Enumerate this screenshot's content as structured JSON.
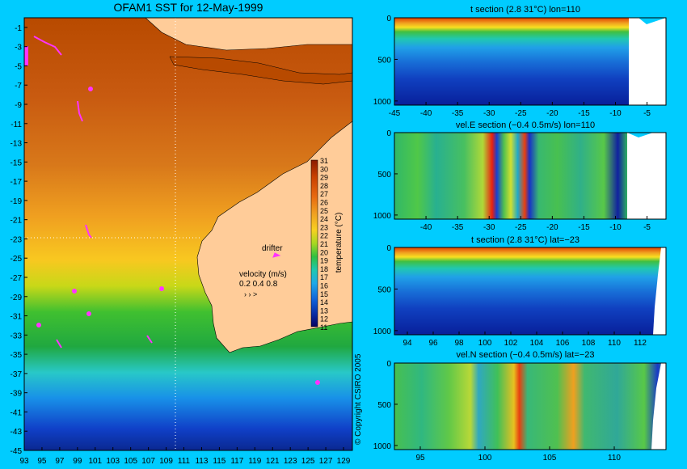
{
  "map": {
    "title": "OFAM1 SST for 12-May-1999",
    "lat_ticks": [
      "-1",
      "-3",
      "-5",
      "-7",
      "-9",
      "-11",
      "-13",
      "-15",
      "-17",
      "-19",
      "-21",
      "-23",
      "-25",
      "-27",
      "-29",
      "-31",
      "-33",
      "-35",
      "-37",
      "-39",
      "-41",
      "-43",
      "-45"
    ],
    "lon_ticks": [
      "93",
      "95",
      "97",
      "99",
      "101",
      "103",
      "105",
      "107",
      "109",
      "111",
      "113",
      "115",
      "117",
      "119",
      "121",
      "123",
      "125",
      "127",
      "129"
    ],
    "drifter_label": "drifter",
    "velocity_label": "velocity (m/s)",
    "velocity_scale": "0.2 0.4 0.8",
    "colorbar_ticks": [
      "31",
      "30",
      "29",
      "28",
      "27",
      "26",
      "25",
      "24",
      "23",
      "22",
      "21",
      "20",
      "19",
      "18",
      "17",
      "16",
      "15",
      "14",
      "13",
      "12",
      "11"
    ],
    "colorbar_label": "temperature (°C)",
    "copyright": "© Copyright CSIRO 2005",
    "colors": {
      "land": "#ffcc99",
      "drifter": "#ff33ff",
      "background": "#00ccff"
    }
  },
  "panels": [
    {
      "title": "t section (2.8     31°C) lon=110",
      "y_ticks": [
        "0",
        "500",
        "1000"
      ],
      "x_ticks": [
        "-45",
        "-40",
        "-35",
        "-30",
        "-25",
        "-20",
        "-15",
        "-10",
        "-5"
      ]
    },
    {
      "title": "vel.E section (−0.4     0.5m/s) lon=110",
      "y_ticks": [
        "0",
        "500",
        "1000"
      ],
      "x_ticks": [
        "-40",
        "-35",
        "-30",
        "-25",
        "-20",
        "-15",
        "-10",
        "-5"
      ]
    },
    {
      "title": "t section (2.8     31°C) lat=−23",
      "y_ticks": [
        "0",
        "500",
        "1000"
      ],
      "x_ticks": [
        "94",
        "96",
        "98",
        "100",
        "102",
        "104",
        "106",
        "108",
        "110",
        "112"
      ]
    },
    {
      "title": "vel.N section (−0.4     0.5m/s) lat=−23",
      "y_ticks": [
        "0",
        "500",
        "1000"
      ],
      "x_ticks": [
        "95",
        "100",
        "105",
        "110"
      ]
    }
  ],
  "chart_data": [
    {
      "type": "heatmap",
      "title": "OFAM1 SST for 12-May-1999",
      "xlim": [
        93,
        130
      ],
      "ylim": [
        -45,
        0
      ],
      "colorbar_range": [
        11,
        31
      ],
      "colorbar_label": "temperature (°C)"
    },
    {
      "type": "heatmap",
      "title": "t section (2.8     31°C) lon=110",
      "xlim": [
        -45,
        -2
      ],
      "ylim": [
        1050,
        0
      ],
      "value_range": [
        2.8,
        31
      ]
    },
    {
      "type": "heatmap",
      "title": "vel.E section (−0.4     0.5m/s) lon=110",
      "xlim": [
        -45,
        -2
      ],
      "ylim": [
        1050,
        0
      ],
      "value_range": [
        -0.4,
        0.5
      ]
    },
    {
      "type": "heatmap",
      "title": "t section (2.8     31°C) lat=−23",
      "xlim": [
        93,
        114
      ],
      "ylim": [
        1050,
        0
      ],
      "value_range": [
        2.8,
        31
      ]
    },
    {
      "type": "heatmap",
      "title": "vel.N section (−0.4     0.5m/s) lat=−23",
      "xlim": [
        93,
        114
      ],
      "ylim": [
        1050,
        0
      ],
      "value_range": [
        -0.4,
        0.5
      ]
    }
  ]
}
